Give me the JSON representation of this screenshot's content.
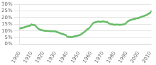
{
  "chart_data": {
    "type": "line",
    "x": [
      1900,
      1901,
      1902,
      1903,
      1904,
      1905,
      1906,
      1907,
      1908,
      1909,
      1910,
      1911,
      1912,
      1913,
      1914,
      1915,
      1916,
      1917,
      1918,
      1919,
      1920,
      1921,
      1922,
      1923,
      1924,
      1925,
      1926,
      1927,
      1928,
      1929,
      1930,
      1931,
      1932,
      1933,
      1934,
      1935,
      1936,
      1937,
      1938,
      1939,
      1940,
      1941,
      1942,
      1943,
      1944,
      1945,
      1946,
      1947,
      1948,
      1949,
      1950,
      1951,
      1952,
      1953,
      1954,
      1955,
      1956,
      1957,
      1958,
      1959,
      1960,
      1961,
      1962,
      1963,
      1964,
      1965,
      1966,
      1967,
      1968,
      1969,
      1970,
      1971,
      1972,
      1973,
      1974,
      1975,
      1976,
      1977,
      1978,
      1979,
      1980,
      1981,
      1982,
      1983,
      1984,
      1985,
      1986,
      1987,
      1988,
      1989,
      1990,
      1991,
      1992,
      1993,
      1994,
      1995,
      1996,
      1997,
      1998,
      1999,
      2000,
      2001,
      2002,
      2003,
      2004,
      2005,
      2006,
      2007,
      2008,
      2009,
      2010,
      2011
    ],
    "values": [
      0.117,
      0.12,
      0.122,
      0.124,
      0.127,
      0.13,
      0.133,
      0.136,
      0.138,
      0.14,
      0.148,
      0.146,
      0.144,
      0.142,
      0.133,
      0.122,
      0.115,
      0.11,
      0.107,
      0.105,
      0.103,
      0.101,
      0.1,
      0.1,
      0.099,
      0.098,
      0.098,
      0.097,
      0.097,
      0.097,
      0.096,
      0.093,
      0.09,
      0.087,
      0.083,
      0.08,
      0.077,
      0.074,
      0.071,
      0.068,
      0.057,
      0.055,
      0.054,
      0.053,
      0.053,
      0.055,
      0.058,
      0.06,
      0.062,
      0.064,
      0.066,
      0.07,
      0.076,
      0.082,
      0.088,
      0.095,
      0.103,
      0.112,
      0.115,
      0.125,
      0.136,
      0.148,
      0.158,
      0.163,
      0.165,
      0.168,
      0.17,
      0.17,
      0.168,
      0.169,
      0.172,
      0.17,
      0.168,
      0.167,
      0.165,
      0.158,
      0.153,
      0.151,
      0.149,
      0.148,
      0.146,
      0.147,
      0.148,
      0.147,
      0.146,
      0.146,
      0.147,
      0.148,
      0.15,
      0.153,
      0.162,
      0.17,
      0.176,
      0.181,
      0.183,
      0.186,
      0.189,
      0.191,
      0.193,
      0.195,
      0.196,
      0.2,
      0.204,
      0.207,
      0.21,
      0.213,
      0.217,
      0.22,
      0.226,
      0.231,
      0.237,
      0.248
    ],
    "color": "#66bb66",
    "marker": "o",
    "xlim": [
      1900,
      2011
    ],
    "xticks": [
      1900,
      1910,
      1920,
      1930,
      1940,
      1950,
      1960,
      1970,
      1980,
      1990,
      2000,
      2010
    ],
    "ylim": [
      0,
      0.3
    ],
    "yticks": [
      {
        "value": 0,
        "label": "0%"
      },
      {
        "value": 0.05,
        "label": "5%"
      },
      {
        "value": 0.1,
        "label": "10%"
      },
      {
        "value": 0.15,
        "label": "15%"
      },
      {
        "value": 0.2,
        "label": "20%"
      },
      {
        "value": 0.25,
        "label": "25%"
      },
      {
        "value": 0.3,
        "label": "30%"
      }
    ],
    "grid": "y"
  }
}
